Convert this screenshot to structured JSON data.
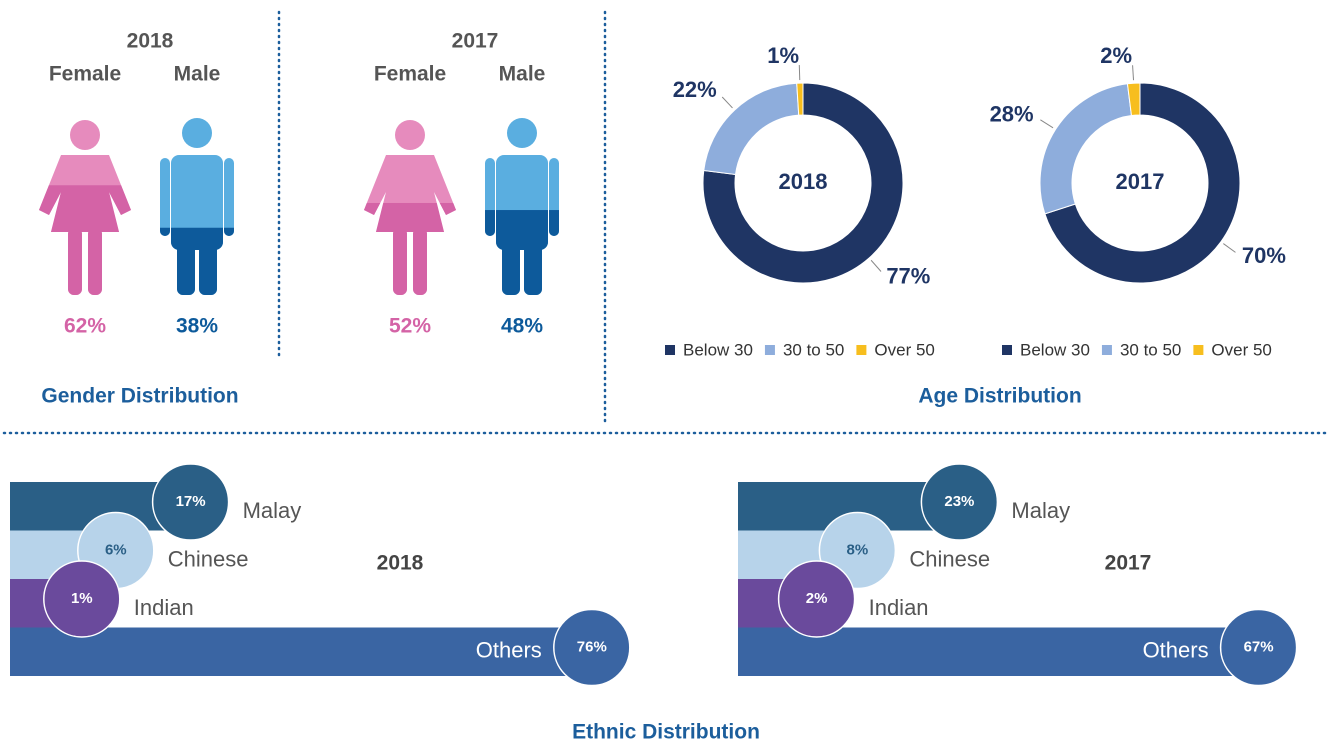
{
  "sections": [
    {
      "title": "Gender Distribution"
    },
    {
      "title": "Age Distribution"
    },
    {
      "title": "Ethnic Distribution"
    }
  ],
  "chart_data": [
    {
      "type": "pictogram",
      "title": "2018",
      "categories": [
        "Female",
        "Male"
      ],
      "values": [
        62,
        38
      ],
      "value_labels": [
        "62%",
        "38%"
      ],
      "colors": [
        "#d463a6",
        "#0d5a9b"
      ],
      "light_colors": [
        "#e68bbd",
        "#5aaee0"
      ]
    },
    {
      "type": "pictogram",
      "title": "2017",
      "categories": [
        "Female",
        "Male"
      ],
      "values": [
        52,
        48
      ],
      "value_labels": [
        "52%",
        "48%"
      ],
      "colors": [
        "#d463a6",
        "#0d5a9b"
      ],
      "light_colors": [
        "#e68bbd",
        "#5aaee0"
      ]
    },
    {
      "type": "donut",
      "title": "2018",
      "categories": [
        "Below 30",
        "30 to 50",
        "Over 50"
      ],
      "values": [
        77,
        22,
        1
      ],
      "value_labels": [
        "77%",
        "22%",
        "1%"
      ],
      "colors": [
        "#1f3564",
        "#8eaddc",
        "#f7be1e"
      ]
    },
    {
      "type": "donut",
      "title": "2017",
      "categories": [
        "Below 30",
        "30 to 50",
        "Over 50"
      ],
      "values": [
        70,
        28,
        2
      ],
      "value_labels": [
        "70%",
        "28%",
        "2%"
      ],
      "colors": [
        "#1f3564",
        "#8eaddc",
        "#f7be1e"
      ]
    },
    {
      "type": "bubblebar",
      "title": "2018",
      "categories": [
        "Malay",
        "Chinese",
        "Indian",
        "Others"
      ],
      "values": [
        17,
        6,
        1,
        76
      ],
      "value_labels": [
        "17%",
        "6%",
        "1%",
        "76%"
      ],
      "colors": [
        "#2a5f86",
        "#b7d3ea",
        "#6a4a9c",
        "#3a65a3"
      ]
    },
    {
      "type": "bubblebar",
      "title": "2017",
      "categories": [
        "Malay",
        "Chinese",
        "Indian",
        "Others"
      ],
      "values": [
        23,
        8,
        2,
        67
      ],
      "value_labels": [
        "23%",
        "8%",
        "2%",
        "67%"
      ],
      "colors": [
        "#2a5f86",
        "#b7d3ea",
        "#6a4a9c",
        "#3a65a3"
      ]
    }
  ]
}
